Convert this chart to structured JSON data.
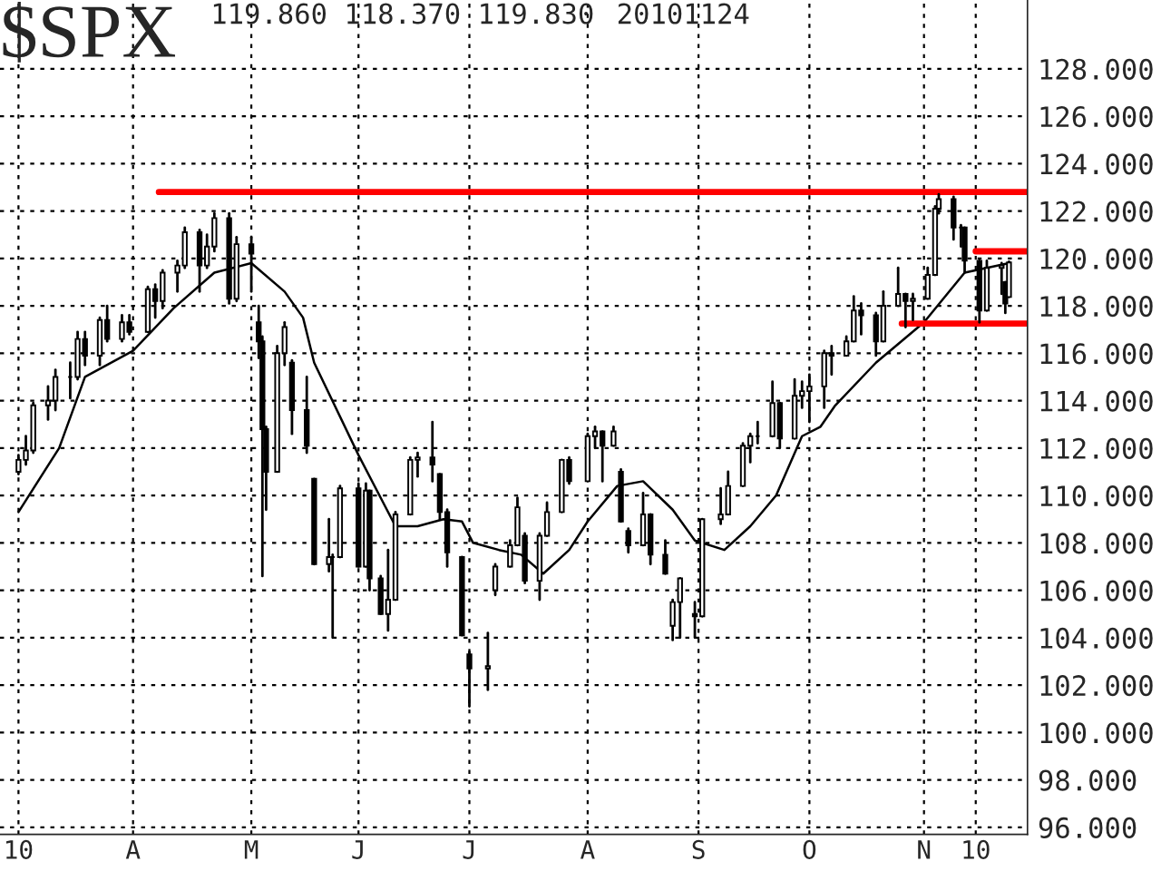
{
  "chart_data": {
    "type": "candlestick",
    "title": "$SPX",
    "annotations": [
      "119.860 118.370 119.830",
      "20101124"
    ],
    "x": [
      "2010-03-01",
      "2010-03-03",
      "2010-03-05",
      "2010-03-09",
      "2010-03-11",
      "2010-03-15",
      "2010-03-17",
      "2010-03-19",
      "2010-03-23",
      "2010-03-25",
      "2010-03-29",
      "2010-03-31",
      "2010-04-05",
      "2010-04-07",
      "2010-04-09",
      "2010-04-13",
      "2010-04-15",
      "2010-04-19",
      "2010-04-21",
      "2010-04-23",
      "2010-04-27",
      "2010-04-29",
      "2010-05-03",
      "2010-05-05",
      "2010-05-06",
      "2010-05-07",
      "2010-05-10",
      "2010-05-12",
      "2010-05-14",
      "2010-05-18",
      "2010-05-20",
      "2010-05-24",
      "2010-05-25",
      "2010-05-27",
      "2010-06-01",
      "2010-06-03",
      "2010-06-04",
      "2010-06-07",
      "2010-06-09",
      "2010-06-11",
      "2010-06-15",
      "2010-06-17",
      "2010-06-21",
      "2010-06-23",
      "2010-06-25",
      "2010-06-29",
      "2010-07-01",
      "2010-07-06",
      "2010-07-08",
      "2010-07-12",
      "2010-07-14",
      "2010-07-16",
      "2010-07-20",
      "2010-07-22",
      "2010-07-26",
      "2010-07-28",
      "2010-08-02",
      "2010-08-04",
      "2010-08-06",
      "2010-08-09",
      "2010-08-11",
      "2010-08-13",
      "2010-08-17",
      "2010-08-19",
      "2010-08-23",
      "2010-08-25",
      "2010-08-27",
      "2010-08-31",
      "2010-09-02",
      "2010-09-07",
      "2010-09-09",
      "2010-09-13",
      "2010-09-15",
      "2010-09-17",
      "2010-09-21",
      "2010-09-23",
      "2010-09-27",
      "2010-09-29",
      "2010-10-01",
      "2010-10-05",
      "2010-10-07",
      "2010-10-11",
      "2010-10-13",
      "2010-10-15",
      "2010-10-19",
      "2010-10-21",
      "2010-10-25",
      "2010-10-27",
      "2010-10-29",
      "2010-11-02",
      "2010-11-04",
      "2010-11-05",
      "2010-11-09",
      "2010-11-11",
      "2010-11-12",
      "2010-11-16",
      "2010-11-18",
      "2010-11-22",
      "2010-11-23",
      "2010-11-24"
    ],
    "ohlc": [
      [
        111.0,
        111.7,
        110.9,
        111.5
      ],
      [
        111.5,
        112.5,
        111.3,
        111.9
      ],
      [
        111.9,
        113.9,
        111.8,
        113.8
      ],
      [
        113.8,
        114.6,
        113.2,
        114.0
      ],
      [
        114.0,
        115.3,
        113.6,
        115.0
      ],
      [
        115.0,
        115.6,
        114.1,
        115.0
      ],
      [
        115.0,
        116.9,
        114.9,
        116.6
      ],
      [
        116.6,
        116.9,
        115.5,
        115.9
      ],
      [
        115.9,
        117.5,
        115.5,
        117.4
      ],
      [
        117.4,
        118.0,
        116.5,
        116.6
      ],
      [
        116.6,
        117.6,
        116.5,
        117.3
      ],
      [
        117.3,
        117.6,
        116.8,
        116.9
      ],
      [
        116.9,
        118.8,
        116.9,
        118.7
      ],
      [
        118.7,
        118.9,
        117.5,
        118.2
      ],
      [
        118.2,
        119.5,
        117.9,
        119.4
      ],
      [
        119.4,
        119.9,
        118.6,
        119.7
      ],
      [
        119.7,
        121.3,
        119.6,
        121.1
      ],
      [
        121.1,
        121.2,
        118.6,
        119.7
      ],
      [
        119.7,
        121.0,
        119.6,
        120.5
      ],
      [
        120.5,
        121.9,
        120.3,
        121.7
      ],
      [
        121.7,
        121.9,
        118.1,
        118.3
      ],
      [
        118.3,
        120.9,
        118.2,
        120.6
      ],
      [
        120.6,
        120.9,
        118.6,
        120.2
      ],
      [
        117.3,
        118.0,
        115.8,
        116.5
      ],
      [
        116.5,
        116.7,
        106.6,
        112.8
      ],
      [
        112.8,
        112.9,
        109.4,
        111.0
      ],
      [
        111.0,
        116.3,
        111.0,
        116.0
      ],
      [
        116.0,
        117.3,
        115.5,
        117.1
      ],
      [
        115.6,
        115.7,
        112.6,
        113.6
      ],
      [
        113.6,
        115.0,
        111.8,
        112.1
      ],
      [
        110.7,
        110.7,
        107.1,
        107.1
      ],
      [
        107.1,
        109.0,
        106.8,
        107.4
      ],
      [
        107.4,
        107.5,
        104.0,
        107.4
      ],
      [
        107.4,
        110.4,
        107.4,
        110.3
      ],
      [
        110.3,
        110.5,
        107.0,
        107.0
      ],
      [
        107.0,
        110.5,
        107.0,
        110.2
      ],
      [
        110.2,
        110.2,
        106.0,
        106.5
      ],
      [
        106.5,
        106.6,
        105.0,
        105.0
      ],
      [
        105.0,
        107.7,
        104.3,
        105.6
      ],
      [
        105.6,
        109.3,
        105.6,
        109.2
      ],
      [
        109.2,
        111.6,
        109.2,
        111.5
      ],
      [
        111.5,
        111.8,
        110.8,
        111.6
      ],
      [
        111.6,
        113.1,
        110.6,
        111.3
      ],
      [
        110.9,
        110.9,
        109.0,
        109.3
      ],
      [
        109.3,
        109.4,
        107.0,
        107.6
      ],
      [
        107.4,
        107.4,
        104.1,
        104.1
      ],
      [
        103.3,
        103.4,
        101.1,
        102.7
      ],
      [
        102.7,
        104.2,
        101.8,
        102.8
      ],
      [
        106.0,
        107.1,
        105.8,
        107.0
      ],
      [
        107.0,
        108.1,
        107.0,
        107.9
      ],
      [
        107.9,
        109.9,
        107.9,
        109.5
      ],
      [
        108.3,
        108.4,
        106.3,
        106.4
      ],
      [
        106.4,
        108.4,
        105.6,
        108.3
      ],
      [
        108.3,
        109.7,
        108.3,
        109.3
      ],
      [
        109.3,
        111.5,
        109.3,
        111.5
      ],
      [
        111.5,
        111.6,
        110.5,
        110.6
      ],
      [
        110.6,
        112.6,
        110.6,
        112.5
      ],
      [
        112.5,
        112.9,
        112.0,
        112.7
      ],
      [
        112.7,
        112.7,
        110.6,
        112.1
      ],
      [
        112.1,
        112.9,
        112.1,
        112.7
      ],
      [
        111.0,
        111.1,
        108.9,
        108.9
      ],
      [
        108.5,
        108.6,
        107.6,
        107.9
      ],
      [
        107.9,
        110.1,
        107.9,
        109.2
      ],
      [
        109.2,
        109.2,
        107.1,
        107.5
      ],
      [
        107.5,
        108.1,
        106.7,
        106.7
      ],
      [
        104.5,
        105.6,
        103.9,
        105.5
      ],
      [
        105.5,
        106.5,
        104.0,
        106.5
      ],
      [
        105.0,
        105.5,
        104.0,
        104.9
      ],
      [
        104.9,
        109.0,
        104.9,
        109.0
      ],
      [
        109.0,
        110.3,
        108.8,
        109.2
      ],
      [
        109.2,
        111.0,
        109.2,
        110.4
      ],
      [
        110.4,
        112.2,
        110.4,
        112.1
      ],
      [
        112.1,
        112.6,
        111.4,
        112.5
      ],
      [
        112.5,
        113.1,
        112.2,
        112.5
      ],
      [
        112.5,
        114.8,
        112.5,
        113.9
      ],
      [
        113.9,
        113.9,
        112.0,
        112.4
      ],
      [
        112.4,
        114.9,
        112.4,
        114.2
      ],
      [
        114.2,
        114.8,
        113.7,
        114.4
      ],
      [
        114.4,
        115.1,
        113.1,
        114.6
      ],
      [
        114.6,
        116.1,
        113.7,
        116.0
      ],
      [
        116.0,
        116.3,
        115.1,
        115.9
      ],
      [
        115.9,
        116.7,
        115.9,
        116.5
      ],
      [
        116.5,
        118.4,
        116.5,
        117.8
      ],
      [
        117.8,
        118.1,
        116.8,
        117.6
      ],
      [
        117.6,
        117.7,
        115.9,
        116.5
      ],
      [
        116.5,
        118.6,
        116.5,
        118.0
      ],
      [
        118.0,
        119.6,
        118.0,
        118.5
      ],
      [
        118.5,
        118.5,
        117.1,
        118.2
      ],
      [
        118.2,
        118.5,
        117.4,
        118.3
      ],
      [
        118.3,
        119.6,
        118.3,
        119.3
      ],
      [
        119.3,
        122.2,
        119.3,
        122.1
      ],
      [
        122.1,
        122.7,
        121.9,
        122.5
      ],
      [
        122.5,
        122.6,
        120.8,
        121.3
      ],
      [
        121.3,
        121.4,
        120.5,
        121.3
      ],
      [
        121.3,
        121.3,
        119.4,
        119.9
      ],
      [
        119.9,
        119.9,
        117.3,
        117.8
      ],
      [
        117.8,
        119.9,
        117.8,
        119.6
      ],
      [
        119.6,
        119.8,
        118.5,
        119.7
      ],
      [
        119.0,
        119.0,
        117.7,
        118.1
      ],
      [
        118.37,
        119.86,
        118.37,
        119.83
      ]
    ],
    "series": [
      {
        "type": "line",
        "color": "#000000",
        "x": [
          "2010-03-01",
          "2010-03-12",
          "2010-03-19",
          "2010-04-01",
          "2010-04-12",
          "2010-04-23",
          "2010-05-03",
          "2010-05-12",
          "2010-05-17",
          "2010-05-20",
          "2010-06-01",
          "2010-06-11",
          "2010-06-17",
          "2010-06-24",
          "2010-06-29",
          "2010-07-02",
          "2010-07-09",
          "2010-07-15",
          "2010-07-21",
          "2010-07-28",
          "2010-08-02",
          "2010-08-10",
          "2010-08-17",
          "2010-08-25",
          "2010-08-31",
          "2010-09-08",
          "2010-09-15",
          "2010-09-22",
          "2010-09-29",
          "2010-10-04",
          "2010-10-08",
          "2010-10-19",
          "2010-11-01",
          "2010-11-12",
          "2010-11-24"
        ],
        "values": [
          109.3,
          112.0,
          115.0,
          116.1,
          117.9,
          119.4,
          119.8,
          118.6,
          117.5,
          115.6,
          111.7,
          108.7,
          108.7,
          109.0,
          108.9,
          108.0,
          107.7,
          107.5,
          106.7,
          107.7,
          108.9,
          110.4,
          110.6,
          109.4,
          108.1,
          107.7,
          108.7,
          110.0,
          112.5,
          112.9,
          113.8,
          115.6,
          117.3,
          119.4,
          119.8
        ]
      },
      {
        "type": "line",
        "color": "#ff0000",
        "x": [
          "2010-04-08",
          "2010-11-29"
        ],
        "values": [
          122.8,
          122.8
        ]
      },
      {
        "type": "line",
        "color": "#ff0000",
        "x": [
          "2010-11-15",
          "2010-11-29"
        ],
        "values": [
          120.3,
          120.3
        ]
      },
      {
        "type": "line",
        "color": "#ff0000",
        "x": [
          "2010-10-26",
          "2010-11-29"
        ],
        "values": [
          117.25,
          117.25
        ]
      }
    ],
    "xlim": [
      "2010-02-24",
      "2010-11-29"
    ],
    "xticks": [
      {
        "value": "2010-03-01",
        "label": "10"
      },
      {
        "value": "2010-04-01",
        "label": "A"
      },
      {
        "value": "2010-05-03",
        "label": "M"
      },
      {
        "value": "2010-06-01",
        "label": "J"
      },
      {
        "value": "2010-07-01",
        "label": "J"
      },
      {
        "value": "2010-08-02",
        "label": "A"
      },
      {
        "value": "2010-09-01",
        "label": "S"
      },
      {
        "value": "2010-10-01",
        "label": "O"
      },
      {
        "value": "2010-11-01",
        "label": "N"
      },
      {
        "value": "2010-11-15",
        "label": "10"
      }
    ],
    "ylim": [
      95.7,
      130.9
    ],
    "yticks": [
      {
        "value": 96,
        "label": "96.000"
      },
      {
        "value": 98,
        "label": "98.000"
      },
      {
        "value": 100,
        "label": "100.000"
      },
      {
        "value": 102,
        "label": "102.000"
      },
      {
        "value": 104,
        "label": "104.000"
      },
      {
        "value": 106,
        "label": "106.000"
      },
      {
        "value": 108,
        "label": "108.000"
      },
      {
        "value": 110,
        "label": "110.000"
      },
      {
        "value": 112,
        "label": "112.000"
      },
      {
        "value": 114,
        "label": "114.000"
      },
      {
        "value": 116,
        "label": "116.000"
      },
      {
        "value": 118,
        "label": "118.000"
      },
      {
        "value": 120,
        "label": "120.000"
      },
      {
        "value": 122,
        "label": "122.000"
      },
      {
        "value": 124,
        "label": "124.000"
      },
      {
        "value": 126,
        "label": "126.000"
      },
      {
        "value": 128,
        "label": "128.000"
      }
    ],
    "grid": true
  }
}
